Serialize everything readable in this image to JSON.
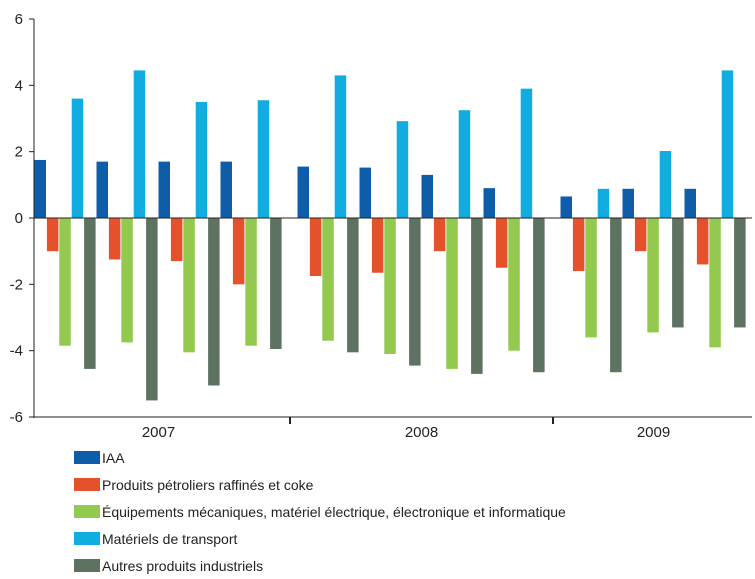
{
  "chart_data": {
    "type": "bar",
    "title": "",
    "xlabel": "",
    "ylabel": "",
    "ylim": [
      -6,
      6
    ],
    "yticks": [
      -6,
      -4,
      -2,
      0,
      2,
      4,
      6
    ],
    "grid": false,
    "legend_position": "bottom",
    "groups": [
      {
        "label": "2007",
        "quarters": 4
      },
      {
        "label": "2008",
        "quarters": 4
      },
      {
        "label": "2009",
        "quarters": 3
      }
    ],
    "series": [
      {
        "name": "IAA",
        "color": "#0f5ca8",
        "values": [
          1.75,
          1.7,
          1.7,
          1.7,
          1.55,
          1.52,
          1.3,
          0.9,
          0.65,
          0.88,
          0.88
        ]
      },
      {
        "name": "Produits pétroliers raffinés et coke",
        "color": "#e5512a",
        "values": [
          -1.0,
          -1.25,
          -1.3,
          -2.0,
          -1.75,
          -1.65,
          -1.0,
          -1.5,
          -1.6,
          -1.0,
          -1.4
        ]
      },
      {
        "name": "Équipements mécaniques, matériel électrique, électronique et informatique",
        "color": "#92c94e",
        "values": [
          -3.85,
          -3.75,
          -4.05,
          -3.85,
          -3.7,
          -4.1,
          -4.55,
          -4.0,
          -3.6,
          -3.45,
          -3.9
        ]
      },
      {
        "name": "Matériels de transport",
        "color": "#11ace0",
        "values": [
          3.6,
          4.45,
          3.5,
          3.55,
          4.3,
          2.92,
          3.25,
          3.9,
          0.88,
          2.02,
          4.45
        ]
      },
      {
        "name": "Autres produits industriels",
        "color": "#5e7262",
        "values": [
          -4.55,
          -5.5,
          -5.05,
          -3.95,
          -4.05,
          -4.45,
          -4.7,
          -4.65,
          -4.65,
          -3.3,
          -3.3
        ]
      }
    ]
  }
}
